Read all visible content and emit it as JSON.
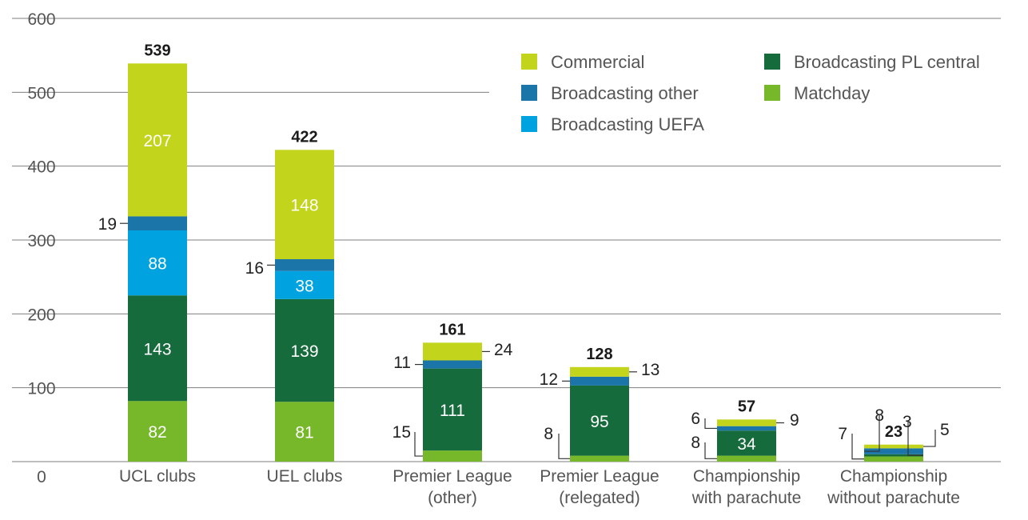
{
  "chart_data": {
    "type": "bar",
    "stacked": true,
    "categories": [
      [
        "UCL clubs"
      ],
      [
        "UEL clubs"
      ],
      [
        "Premier League",
        "(other)"
      ],
      [
        "Premier League",
        "(relegated)"
      ],
      [
        "Championship",
        "with parachute"
      ],
      [
        "Championship",
        "without parachute"
      ]
    ],
    "ylim": [
      0,
      600
    ],
    "yticks": [
      "0",
      "100",
      "200",
      "300",
      "400",
      "500",
      "600"
    ],
    "grid": true,
    "legend_position": "top-right",
    "series": [
      {
        "name": "Matchday",
        "color": "#76b82a",
        "values": [
          82,
          81,
          15,
          8,
          8,
          7
        ]
      },
      {
        "name": "Broadcasting PL central",
        "color": "#156b3b",
        "values": [
          143,
          139,
          111,
          95,
          34,
          3
        ]
      },
      {
        "name": "Broadcasting UEFA",
        "color": "#00a3e0",
        "values": [
          88,
          38,
          0,
          0,
          0,
          0
        ]
      },
      {
        "name": "Broadcasting other",
        "color": "#1b75a8",
        "values": [
          19,
          16,
          11,
          12,
          6,
          8
        ]
      },
      {
        "name": "Commercial",
        "color": "#c3d41c",
        "values": [
          207,
          148,
          24,
          13,
          9,
          5
        ]
      }
    ],
    "totals": [
      "539",
      "422",
      "161",
      "128",
      "57",
      "23"
    ],
    "legend_order": [
      [
        "Commercial",
        "Broadcasting PL central"
      ],
      [
        "Broadcasting other",
        "Matchday"
      ],
      [
        "Broadcasting UEFA"
      ]
    ]
  }
}
